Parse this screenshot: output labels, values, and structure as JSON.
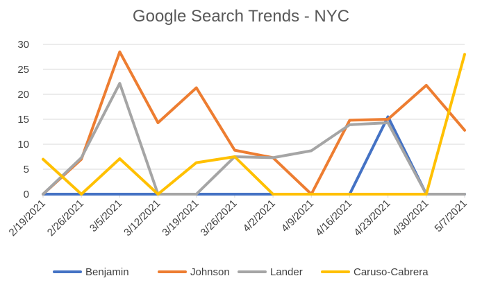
{
  "chart_data": {
    "type": "line",
    "title": "Google Search Trends - NYC",
    "xlabel": "",
    "ylabel": "",
    "ylim": [
      0,
      30
    ],
    "yticks": [
      0,
      5,
      10,
      15,
      20,
      25,
      30
    ],
    "grid": "horizontal",
    "legend_position": "bottom",
    "x": [
      "2/19/2021",
      "2/26/2021",
      "3/5/2021",
      "3/12/2021",
      "3/19/2021",
      "3/26/2021",
      "4/2/2021",
      "4/9/2021",
      "4/16/2021",
      "4/23/2021",
      "4/30/2021",
      "5/7/2021"
    ],
    "series": [
      {
        "name": "Benjamin",
        "color": "#4472c4",
        "values": [
          0,
          0,
          0,
          0,
          0,
          0,
          0,
          null,
          0,
          15.5,
          0,
          0
        ]
      },
      {
        "name": "Johnson",
        "color": "#ed7d31",
        "values": [
          0,
          7,
          28.5,
          14.3,
          21.3,
          8.8,
          7.3,
          0,
          14.8,
          15,
          21.8,
          12.8
        ]
      },
      {
        "name": "Lander",
        "color": "#a5a5a5",
        "values": [
          0,
          7.3,
          22.2,
          0,
          0,
          7.5,
          7.3,
          8.7,
          13.9,
          14.3,
          0,
          0
        ]
      },
      {
        "name": "Caruso-Cabrera",
        "color": "#ffc000",
        "values": [
          7,
          0,
          7.1,
          0,
          6.3,
          7.5,
          0,
          0,
          0,
          0,
          0,
          28
        ]
      }
    ]
  }
}
